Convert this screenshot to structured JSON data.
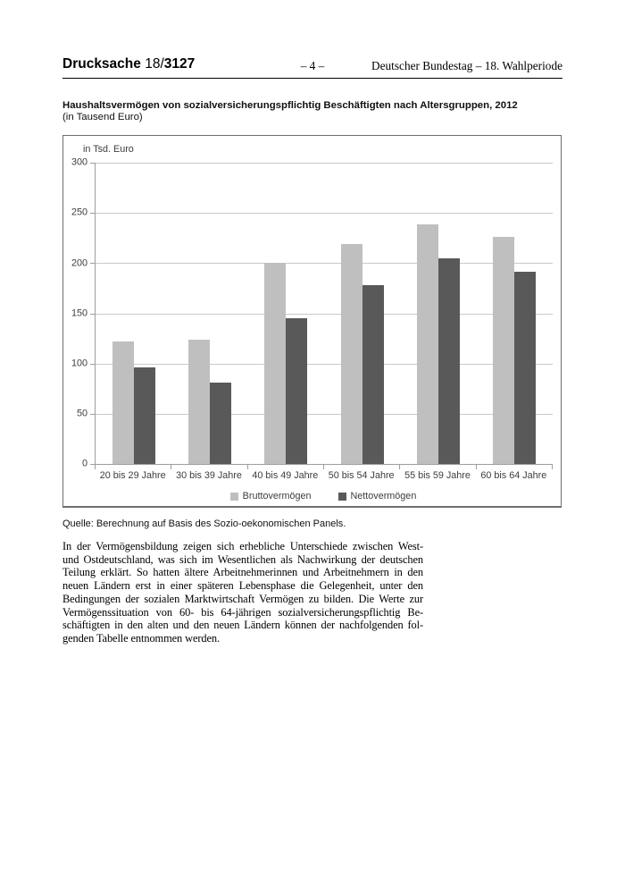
{
  "header": {
    "doc_label": "Drucksache",
    "doc_number_prefix": "18/",
    "doc_number": "3127",
    "page_number": "– 4 –",
    "right_text": "Deutscher Bundestag – 18. Wahlperiode"
  },
  "figure": {
    "title": "Haushaltsvermögen von sozialversicherungspflichtig Beschäftigten nach Altersgruppen, 2012",
    "subtitle": "(in Tausend Euro)",
    "source": "Quelle: Berechnung auf Basis des Sozio-oekonomischen Panels."
  },
  "chart_data": {
    "type": "bar",
    "title": "Haushaltsvermögen von sozialversicherungspflichtig Beschäftigten nach Altersgruppen, 2012 (in Tausend Euro)",
    "axis_unit_label": "in Tsd. Euro",
    "categories": [
      "20 bis 29 Jahre",
      "30 bis 39 Jahre",
      "40 bis 49 Jahre",
      "50 bis 54 Jahre",
      "55 bis 59 Jahre",
      "60 bis 64 Jahre"
    ],
    "series": [
      {
        "name": "Bruttovermögen",
        "color": "#bfbfbf",
        "values": [
          122,
          124,
          200,
          219,
          239,
          226
        ]
      },
      {
        "name": "Nettovermögen",
        "color": "#595959",
        "values": [
          96,
          81,
          145,
          178,
          205,
          191
        ]
      }
    ],
    "ylim": [
      0,
      300
    ],
    "yticks": [
      0,
      50,
      100,
      150,
      200,
      250,
      300
    ],
    "grid": true,
    "legend_position": "bottom",
    "colors": {
      "gridline": "#c9c9c9",
      "axis": "#9e9e9e",
      "box_border": "#6f6f6f",
      "chart_text": "#3d3d3d"
    }
  },
  "paragraph": {
    "lines": [
      "In der Vermögensbildung zeigen sich erhebliche Unterschiede zwischen West-",
      "und Ostdeutschland, was sich im Wesentlichen als Nachwirkung der deutschen",
      "Teilung erklärt. So hatten ältere Arbeitnehmerinnen und Arbeitnehmern in den",
      "neuen Ländern erst in einer späteren Lebensphase die Gelegenheit, unter den",
      "Bedingungen der sozialen Marktwirtschaft Vermögen zu bilden. Die Werte zur",
      "Vermögenssituation von 60- bis 64-jährigen sozialversicherungspflichtig Be-",
      "schäftigten in den alten und den neuen Ländern können der nachfolgenden fol-",
      "genden Tabelle entnommen werden."
    ]
  }
}
